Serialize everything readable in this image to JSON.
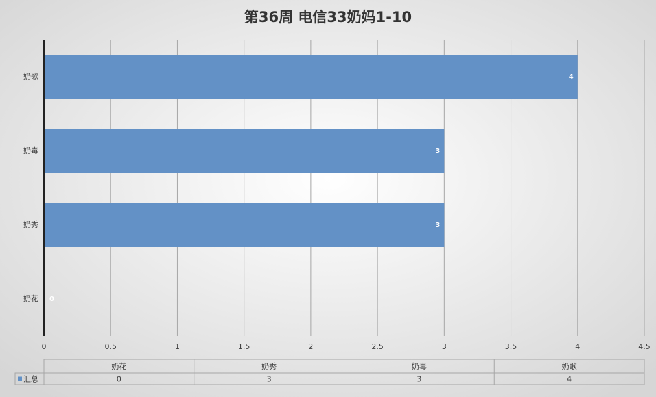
{
  "chart_data": {
    "type": "bar",
    "title": "第36周 电信33奶妈1-10",
    "categories": [
      "奶花",
      "奶秀",
      "奶毒",
      "奶歌"
    ],
    "series": [
      {
        "name": "汇总",
        "color": "#6391c6",
        "values": [
          0,
          3,
          3,
          4
        ]
      }
    ],
    "xlim": [
      0,
      4.5
    ],
    "xticks": [
      0,
      0.5,
      1,
      1.5,
      2,
      2.5,
      3,
      3.5,
      4,
      4.5
    ],
    "grid": true
  }
}
